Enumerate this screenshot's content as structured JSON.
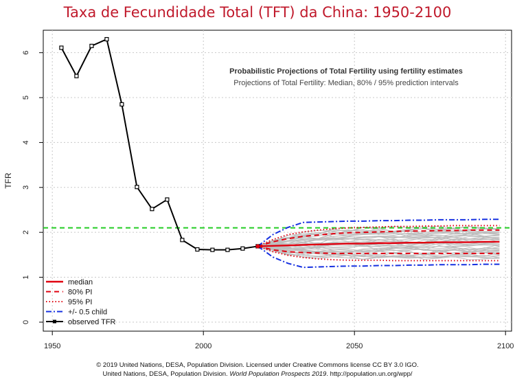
{
  "title": "Taxa de Fecundidade Total (TFT) da China: 1950-2100",
  "inner_title": "Probabilistic Projections of Total Fertility using fertility estimates",
  "inner_subtitle": "Projections of Total Fertility: Median, 80% / 95% prediction intervals",
  "credits": {
    "line1": "© 2019 United Nations, DESA, Population Division. Licensed under Creative Commons license CC BY 3.0 IGO.",
    "line2_a": "United Nations, DESA, Population Division. ",
    "line2_b": "World Population Prospects 2019",
    "line2_c": ". http://population.un.org/wpp/"
  },
  "colors": {
    "title": "#c0192b",
    "observed": "#000000",
    "median": "#e0000f",
    "pi80": "#e0000f",
    "pi95": "#e0000f",
    "half_child": "#1530e0",
    "replacement": "#22cc22",
    "trajectories": "#bdbdbd",
    "grid": "#c8c8c8"
  },
  "chart_data": {
    "type": "line",
    "title": "Taxa de Fecundidade Total (TFT) da China: 1950-2100",
    "xlabel": "",
    "ylabel": "TFR",
    "xlim": [
      1947,
      2102
    ],
    "ylim": [
      -0.2,
      6.5
    ],
    "x_ticks": [
      1950,
      2000,
      2050,
      2100
    ],
    "y_ticks": [
      0,
      1,
      2,
      3,
      4,
      5,
      6
    ],
    "grid": true,
    "legend_position": "bottom-left",
    "legend": [
      "median",
      "80% PI",
      "95% PI",
      "+/- 0.5 child",
      "observed TFR"
    ],
    "observed": {
      "name": "observed TFR",
      "x": [
        1953,
        1958,
        1963,
        1968,
        1973,
        1978,
        1983,
        1988,
        1993,
        1998,
        2003,
        2008,
        2013,
        2018
      ],
      "y": [
        6.11,
        5.48,
        6.15,
        6.3,
        4.85,
        3.01,
        2.52,
        2.73,
        1.83,
        1.62,
        1.61,
        1.61,
        1.64,
        1.69
      ]
    },
    "projection_x": [
      2018,
      2023,
      2028,
      2033,
      2038,
      2043,
      2048,
      2053,
      2058,
      2063,
      2068,
      2073,
      2078,
      2083,
      2088,
      2093,
      2098
    ],
    "series": [
      {
        "name": "median",
        "values": [
          1.69,
          1.7,
          1.71,
          1.72,
          1.73,
          1.74,
          1.75,
          1.75,
          1.76,
          1.76,
          1.77,
          1.77,
          1.78,
          1.78,
          1.78,
          1.79,
          1.79
        ]
      },
      {
        "name": "80% PI upper",
        "values": [
          1.69,
          1.79,
          1.86,
          1.91,
          1.94,
          1.97,
          1.99,
          2.0,
          2.01,
          2.02,
          2.03,
          2.03,
          2.04,
          2.04,
          2.05,
          2.05,
          2.05
        ]
      },
      {
        "name": "80% PI lower",
        "values": [
          1.69,
          1.61,
          1.57,
          1.55,
          1.54,
          1.53,
          1.53,
          1.53,
          1.53,
          1.53,
          1.53,
          1.53,
          1.53,
          1.53,
          1.53,
          1.53,
          1.53
        ]
      },
      {
        "name": "95% PI upper",
        "values": [
          1.69,
          1.84,
          1.95,
          2.01,
          2.05,
          2.08,
          2.1,
          2.11,
          2.12,
          2.13,
          2.13,
          2.14,
          2.14,
          2.15,
          2.15,
          2.15,
          2.15
        ]
      },
      {
        "name": "95% PI lower",
        "values": [
          1.69,
          1.57,
          1.49,
          1.44,
          1.41,
          1.39,
          1.38,
          1.38,
          1.38,
          1.37,
          1.37,
          1.37,
          1.37,
          1.37,
          1.37,
          1.37,
          1.37
        ]
      },
      {
        "name": "+/- 0.5 child upper",
        "values": [
          1.69,
          1.95,
          2.11,
          2.22,
          2.23,
          2.24,
          2.25,
          2.25,
          2.26,
          2.26,
          2.27,
          2.27,
          2.28,
          2.28,
          2.28,
          2.29,
          2.29
        ]
      },
      {
        "name": "+/- 0.5 child lower",
        "values": [
          1.69,
          1.45,
          1.31,
          1.22,
          1.23,
          1.24,
          1.25,
          1.25,
          1.26,
          1.26,
          1.27,
          1.27,
          1.28,
          1.28,
          1.28,
          1.29,
          1.29
        ]
      }
    ],
    "replacement_level": 2.1
  }
}
